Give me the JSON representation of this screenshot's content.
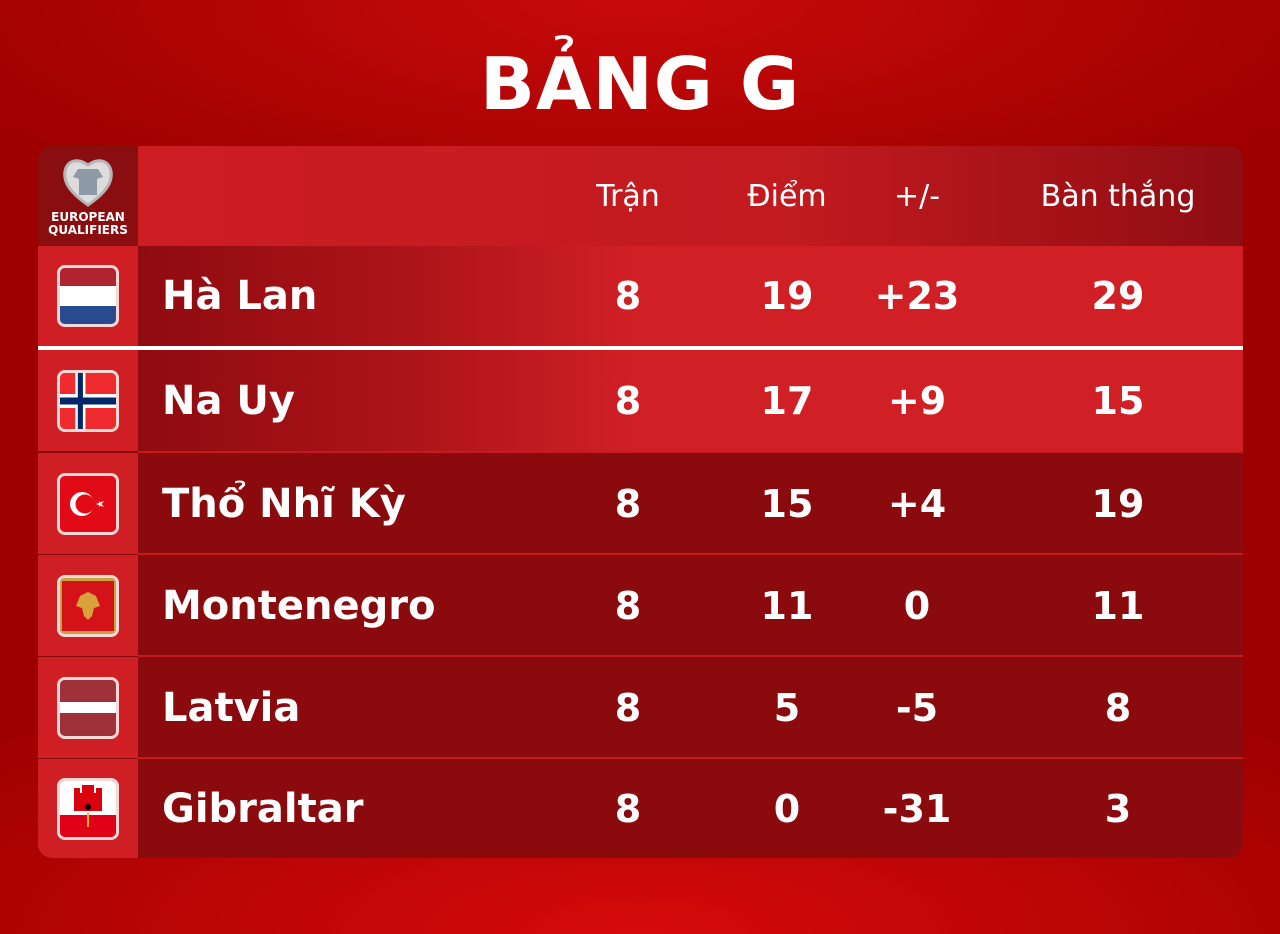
{
  "title": "BẢNG G",
  "logo": {
    "text_line1": "EUROPEAN",
    "text_line2": "QUALIFIERS"
  },
  "headers": [
    "Trận",
    "Điểm",
    "+/-",
    "Bàn thắng"
  ],
  "rows": [
    {
      "team": "Hà Lan",
      "flag": "netherlands-flag",
      "played": "8",
      "points": "19",
      "gd": "+23",
      "goals": "29"
    },
    {
      "team": "Na Uy",
      "flag": "norway-flag",
      "played": "8",
      "points": "17",
      "gd": "+9",
      "goals": "15"
    },
    {
      "team": "Thổ Nhĩ Kỳ",
      "flag": "turkey-flag",
      "played": "8",
      "points": "15",
      "gd": "+4",
      "goals": "19"
    },
    {
      "team": "Montenegro",
      "flag": "montenegro-flag",
      "played": "8",
      "points": "11",
      "gd": "0",
      "goals": "11"
    },
    {
      "team": "Latvia",
      "flag": "latvia-flag",
      "played": "8",
      "points": "5",
      "gd": "-5",
      "goals": "8"
    },
    {
      "team": "Gibraltar",
      "flag": "gibraltar-flag",
      "played": "8",
      "points": "0",
      "gd": "-31",
      "goals": "3"
    }
  ],
  "colors": {
    "background": "#9e0000",
    "highlight_row": "#d02025",
    "dark_row": "#8a0a0e"
  }
}
